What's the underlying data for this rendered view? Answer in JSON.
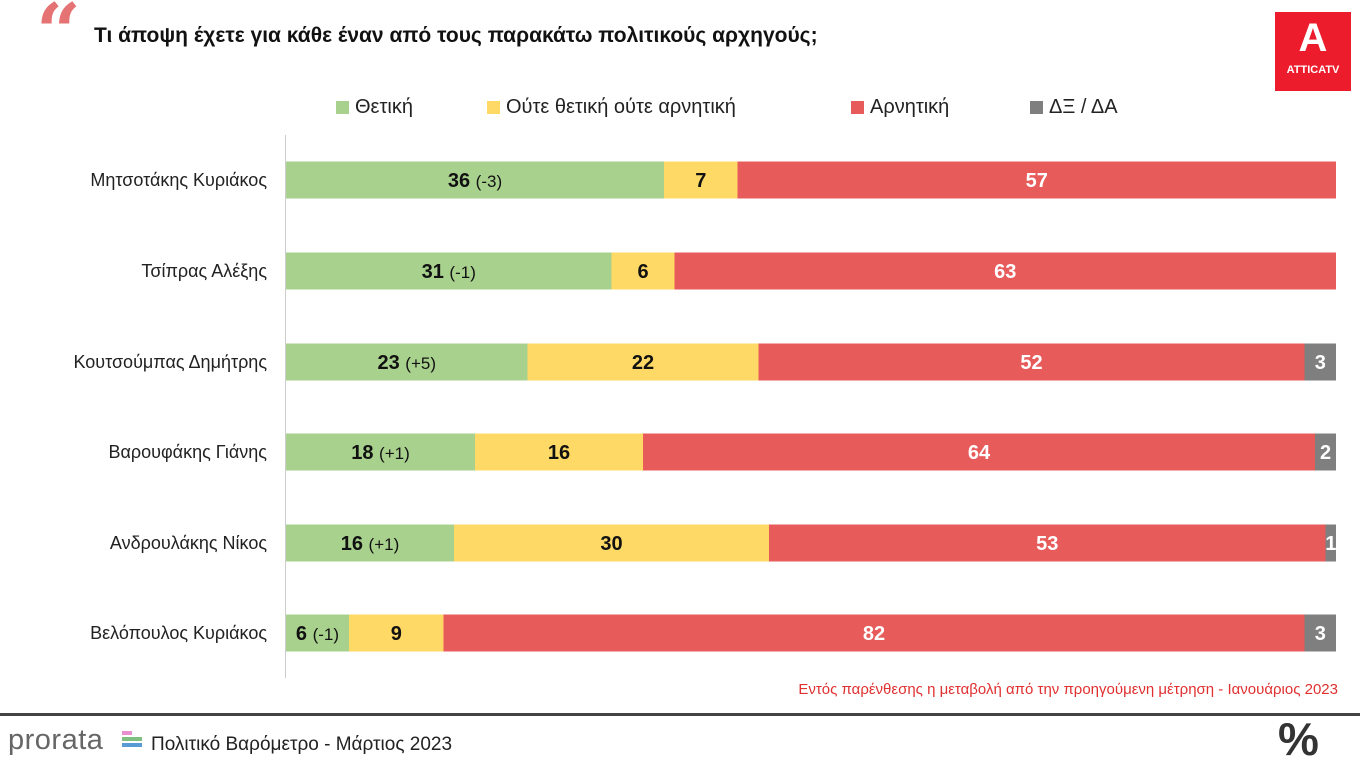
{
  "title": "Τι άποψη έχετε για κάθε έναν από τους παρακάτω πολιτικούς αρχηγούς;",
  "logo": {
    "letter": "A",
    "text": "ATTICATV"
  },
  "note": "Εντός παρένθεσης η μεταβολή από την προηγούμενη μέτρηση - Ιανουάριος 2023",
  "footer": {
    "brand": "prorata",
    "text": "Πολιτικό Βαρόμετρο - Μάρτιος 2023",
    "symbol": "%"
  },
  "chart_data": {
    "type": "bar",
    "orientation": "horizontal-stacked-100",
    "title": "Τι άποψη έχετε για κάθε έναν από τους παρακάτω πολιτικούς αρχηγούς;",
    "legend_position": "top",
    "categories": [
      "Μητσοτάκης Κυριάκος",
      "Τσίπρας Αλέξης",
      "Κουτσούμπας Δημήτρης",
      "Βαρουφάκης Γιάνης",
      "Ανδρουλάκης Νίκος",
      "Βελόπουλος Κυριάκος"
    ],
    "series": [
      {
        "name": "Θετική",
        "color": "#a9d18e",
        "values": [
          36,
          31,
          23,
          18,
          16,
          6
        ]
      },
      {
        "name": "Ούτε θετική ούτε αρνητική",
        "color": "#ffd966",
        "values": [
          7,
          6,
          22,
          16,
          30,
          9
        ]
      },
      {
        "name": "Αρνητική",
        "color": "#e85b5b",
        "values": [
          57,
          63,
          52,
          64,
          53,
          82
        ]
      },
      {
        "name": "ΔΞ / ΔΑ",
        "color": "#7f7f7f",
        "values": [
          0,
          0,
          3,
          2,
          1,
          3
        ]
      }
    ],
    "changes": [
      "(-3)",
      "(-1)",
      "(+5)",
      "(+1)",
      "(+1)",
      "(-1)"
    ],
    "xlim": [
      0,
      100
    ]
  }
}
